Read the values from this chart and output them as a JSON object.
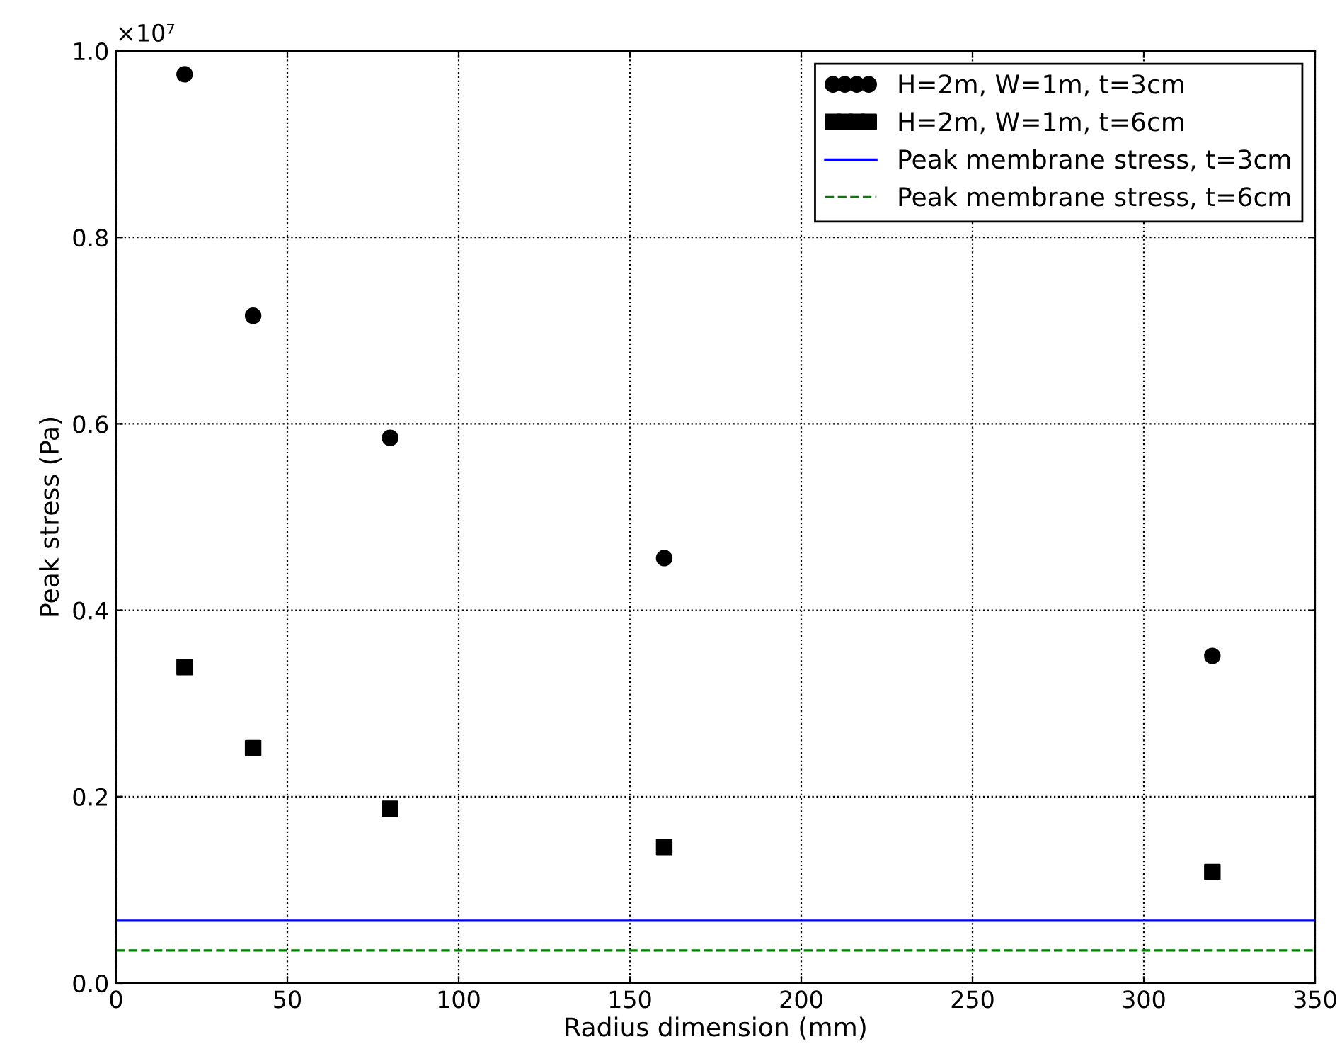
{
  "chart_data": {
    "type": "scatter",
    "xlabel": "Radius dimension (mm)",
    "ylabel": "Peak stress (Pa)",
    "annotations": [
      "×10⁷"
    ],
    "xlim": [
      0,
      350
    ],
    "xticks": [
      0,
      50,
      100,
      150,
      200,
      250,
      300,
      350
    ],
    "ylim": [
      0,
      1
    ],
    "yticks": [
      {
        "value": 0,
        "label": "0.0"
      },
      0.2,
      0.4,
      0.6,
      0.8,
      {
        "value": 1,
        "label": "1.0"
      }
    ],
    "grid": true,
    "legend": "top right",
    "series": [
      {
        "name": "H=2m, W=1m, t=3cm",
        "marker": "circle",
        "color": "#000000",
        "x": [
          20,
          40,
          80,
          160,
          320
        ],
        "values": [
          0.975,
          0.716,
          0.585,
          0.456,
          0.351
        ]
      },
      {
        "name": "H=2m, W=1m, t=6cm",
        "marker": "square",
        "color": "#000000",
        "x": [
          20,
          40,
          80,
          160,
          320
        ],
        "values": [
          0.339,
          0.252,
          0.187,
          0.146,
          0.119
        ]
      },
      {
        "name": "Peak membrane stress, t=3cm",
        "type": "line",
        "line_style": "solid",
        "color": "#0000ff",
        "x": [
          0,
          350
        ],
        "values": [
          0.067,
          0.067
        ]
      },
      {
        "name": "Peak membrane stress, t=6cm",
        "type": "line",
        "line_style": "dashed",
        "color": "#008000",
        "x": [
          0,
          350
        ],
        "values": [
          0.035,
          0.035
        ]
      }
    ]
  }
}
